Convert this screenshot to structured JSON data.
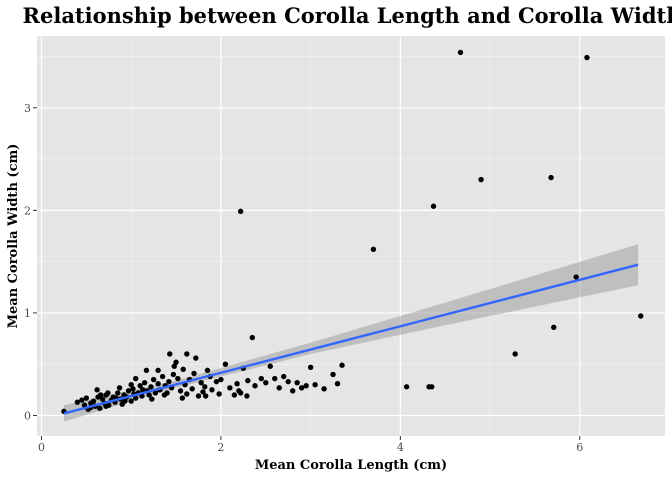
{
  "chart_data": {
    "type": "scatter",
    "title": "Relationship between Corolla Length and Corolla Width",
    "xlabel": "Mean Corolla Length (cm)",
    "ylabel": "Mean Corolla Width (cm)",
    "xlim": [
      -0.05,
      6.95
    ],
    "ylim": [
      -0.2,
      3.7
    ],
    "xticks": [
      0,
      2,
      4,
      6
    ],
    "yticks": [
      0,
      1,
      2,
      3
    ],
    "grid": true,
    "legend": "none",
    "colors": {
      "panel": "#e5e5e5",
      "grid_major": "#ffffff",
      "points": "#000000",
      "fit_line": "#3366ff",
      "ribbon": "#999999"
    },
    "fit": {
      "x_start": 0.25,
      "y_start": 0.02,
      "x_end": 6.65,
      "y_end": 1.47,
      "ribbon": [
        {
          "x": 0.25,
          "lo": -0.06,
          "hi": 0.1
        },
        {
          "x": 1.5,
          "lo": 0.27,
          "hi": 0.34
        },
        {
          "x": 3.0,
          "lo": 0.6,
          "hi": 0.71
        },
        {
          "x": 4.5,
          "lo": 0.88,
          "hi": 1.1
        },
        {
          "x": 6.65,
          "lo": 1.27,
          "hi": 1.67
        }
      ]
    },
    "points": [
      [
        0.25,
        0.04
      ],
      [
        0.4,
        0.13
      ],
      [
        0.45,
        0.15
      ],
      [
        0.48,
        0.1
      ],
      [
        0.5,
        0.17
      ],
      [
        0.52,
        0.06
      ],
      [
        0.55,
        0.12
      ],
      [
        0.58,
        0.14
      ],
      [
        0.6,
        0.09
      ],
      [
        0.62,
        0.25
      ],
      [
        0.63,
        0.18
      ],
      [
        0.65,
        0.07
      ],
      [
        0.68,
        0.16
      ],
      [
        0.7,
        0.12
      ],
      [
        0.72,
        0.2
      ],
      [
        0.74,
        0.22
      ],
      [
        0.75,
        0.1
      ],
      [
        0.78,
        0.15
      ],
      [
        0.8,
        0.18
      ],
      [
        0.82,
        0.13
      ],
      [
        0.85,
        0.22
      ],
      [
        0.87,
        0.27
      ],
      [
        0.88,
        0.16
      ],
      [
        0.9,
        0.11
      ],
      [
        0.92,
        0.2
      ],
      [
        0.95,
        0.18
      ],
      [
        0.97,
        0.24
      ],
      [
        1.0,
        0.14
      ],
      [
        1.0,
        0.3
      ],
      [
        1.02,
        0.26
      ],
      [
        1.05,
        0.17
      ],
      [
        1.05,
        0.36
      ],
      [
        1.08,
        0.22
      ],
      [
        1.1,
        0.29
      ],
      [
        1.12,
        0.19
      ],
      [
        1.15,
        0.32
      ],
      [
        1.17,
        0.44
      ],
      [
        1.18,
        0.24
      ],
      [
        1.2,
        0.2
      ],
      [
        1.22,
        0.28
      ],
      [
        1.25,
        0.35
      ],
      [
        1.27,
        0.22
      ],
      [
        1.3,
        0.31
      ],
      [
        1.3,
        0.44
      ],
      [
        1.32,
        0.25
      ],
      [
        1.35,
        0.38
      ],
      [
        1.38,
        0.29
      ],
      [
        1.4,
        0.22
      ],
      [
        1.42,
        0.33
      ],
      [
        1.45,
        0.27
      ],
      [
        1.47,
        0.4
      ],
      [
        1.48,
        0.48
      ],
      [
        1.5,
        0.52
      ],
      [
        1.52,
        0.36
      ],
      [
        1.55,
        0.24
      ],
      [
        1.57,
        0.17
      ],
      [
        1.6,
        0.3
      ],
      [
        1.62,
        0.21
      ],
      [
        1.62,
        0.6
      ],
      [
        1.65,
        0.35
      ],
      [
        1.68,
        0.26
      ],
      [
        1.7,
        0.41
      ],
      [
        1.72,
        0.56
      ],
      [
        1.75,
        0.19
      ],
      [
        1.78,
        0.32
      ],
      [
        1.8,
        0.23
      ],
      [
        1.82,
        0.28
      ],
      [
        1.85,
        0.44
      ],
      [
        1.88,
        0.38
      ],
      [
        1.9,
        0.25
      ],
      [
        1.95,
        0.33
      ],
      [
        1.98,
        0.21
      ],
      [
        2.0,
        0.35
      ],
      [
        2.05,
        0.5
      ],
      [
        2.1,
        0.27
      ],
      [
        2.15,
        0.2
      ],
      [
        2.18,
        0.31
      ],
      [
        2.2,
        0.24
      ],
      [
        2.25,
        0.46
      ],
      [
        2.3,
        0.34
      ],
      [
        2.35,
        0.76
      ],
      [
        2.38,
        0.29
      ],
      [
        2.45,
        0.36
      ],
      [
        2.5,
        0.32
      ],
      [
        2.55,
        0.48
      ],
      [
        2.6,
        0.36
      ],
      [
        2.65,
        0.27
      ],
      [
        2.7,
        0.38
      ],
      [
        2.75,
        0.33
      ],
      [
        2.8,
        0.24
      ],
      [
        2.85,
        0.32
      ],
      [
        2.9,
        0.27
      ],
      [
        2.95,
        0.29
      ],
      [
        3.0,
        0.47
      ],
      [
        3.05,
        0.3
      ],
      [
        3.15,
        0.26
      ],
      [
        3.25,
        0.4
      ],
      [
        3.3,
        0.31
      ],
      [
        3.35,
        0.49
      ],
      [
        0.55,
        0.08
      ],
      [
        0.66,
        0.2
      ],
      [
        0.72,
        0.09
      ],
      [
        0.83,
        0.17
      ],
      [
        0.93,
        0.14
      ],
      [
        1.03,
        0.21
      ],
      [
        1.13,
        0.25
      ],
      [
        1.23,
        0.16
      ],
      [
        1.37,
        0.2
      ],
      [
        1.43,
        0.6
      ],
      [
        1.58,
        0.45
      ],
      [
        1.83,
        0.19
      ],
      [
        2.22,
        0.22
      ],
      [
        2.29,
        0.19
      ],
      [
        2.22,
        1.99
      ],
      [
        3.7,
        1.62
      ],
      [
        4.07,
        0.28
      ],
      [
        4.32,
        0.28
      ],
      [
        4.35,
        0.28
      ],
      [
        4.37,
        2.04
      ],
      [
        4.67,
        3.54
      ],
      [
        4.9,
        2.3
      ],
      [
        5.28,
        0.6
      ],
      [
        5.68,
        2.32
      ],
      [
        5.71,
        0.86
      ],
      [
        5.96,
        1.35
      ],
      [
        6.08,
        3.49
      ],
      [
        6.68,
        0.97
      ]
    ]
  }
}
